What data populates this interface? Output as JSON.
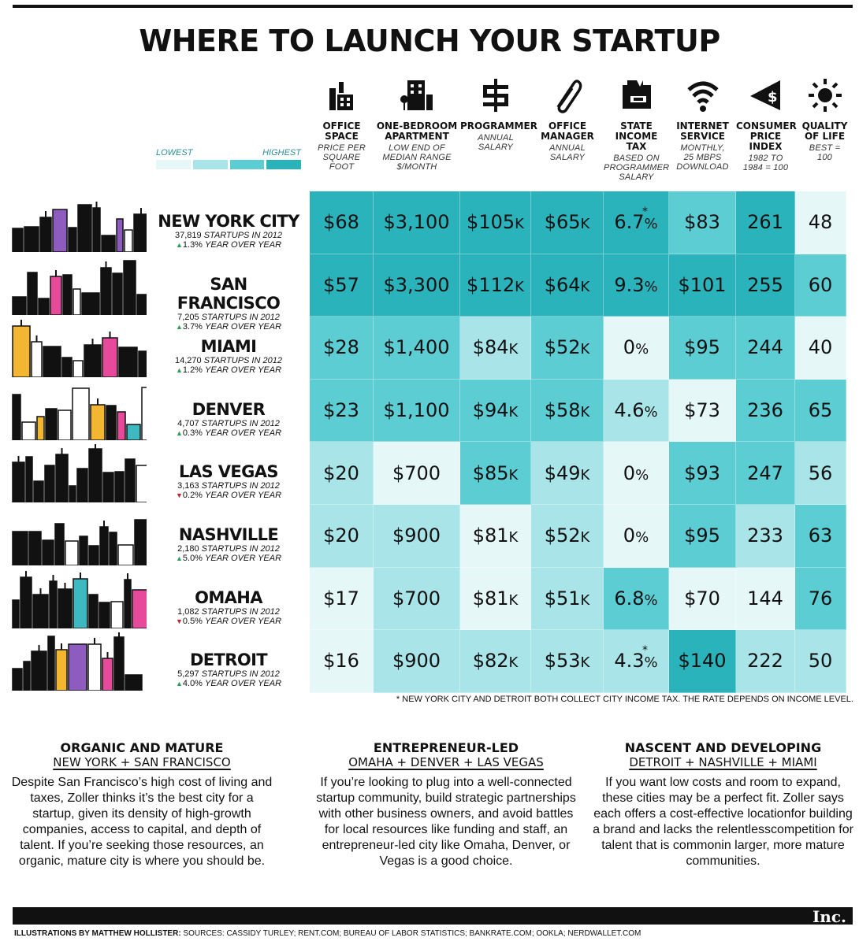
{
  "title": "WHERE TO LAUNCH YOUR STARTUP",
  "legend": {
    "low": "LOWEST",
    "high": "HIGHEST",
    "colors": [
      "#e6f7f8",
      "#a8e4e8",
      "#5ccdd3",
      "#2ab3bb"
    ]
  },
  "columns": [
    {
      "icon": "office-building-icon",
      "title1": "OFFICE",
      "title2": "SPACE",
      "sub": [
        "PRICE PER",
        "SQUARE",
        "FOOT"
      ]
    },
    {
      "icon": "apartment-icon",
      "title1": "ONE-BEDROOM",
      "title2": "APARTMENT",
      "sub": [
        "LOW END OF",
        "MEDIAN RANGE",
        "$/MONTH"
      ]
    },
    {
      "icon": "dollar-code-icon",
      "title1": "PROGRAMMER",
      "title2": "",
      "sub": [
        "ANNUAL",
        "SALARY",
        ""
      ]
    },
    {
      "icon": "paperclip-icon",
      "title1": "OFFICE",
      "title2": "MANAGER",
      "sub": [
        "ANNUAL",
        "SALARY",
        ""
      ]
    },
    {
      "icon": "tax-register-icon",
      "title1": "STATE",
      "title2": "INCOME TAX",
      "sub": [
        "BASED ON",
        "PROGRAMMER",
        "SALARY"
      ]
    },
    {
      "icon": "wifi-icon",
      "title1": "INTERNET",
      "title2": "SERVICE",
      "sub": [
        "MONTHLY,",
        "25 MBPS",
        "DOWNLOAD"
      ]
    },
    {
      "icon": "price-tag-icon",
      "title1": "CONSUMER",
      "title2": "PRICE",
      "title3": "INDEX",
      "sub": [
        "1982 TO",
        "1984 = 100",
        ""
      ]
    },
    {
      "icon": "sun-icon",
      "title1": "QUALITY",
      "title2": "OF LIFE",
      "sub": [
        "BEST =",
        "100",
        ""
      ]
    }
  ],
  "cities": [
    {
      "name": "NEW YORK CITY",
      "startups": "37,819",
      "startups_label": "STARTUPS IN 2012",
      "trend": "up",
      "change": "1.3%",
      "change_label": "YEAR OVER YEAR",
      "cells": [
        [
          "$68",
          4
        ],
        [
          "$3,100",
          4
        ],
        [
          "$105K",
          4
        ],
        [
          "$65K",
          4
        ],
        [
          "6.7%",
          4,
          true
        ],
        [
          "$83",
          3
        ],
        [
          "261",
          4
        ],
        [
          "48",
          1
        ]
      ]
    },
    {
      "name": "SAN FRANCISCO",
      "startups": "7,205",
      "startups_label": "STARTUPS IN 2012",
      "trend": "up",
      "change": "3.7%",
      "change_label": "YEAR OVER YEAR",
      "cells": [
        [
          "$57",
          4
        ],
        [
          "$3,300",
          4
        ],
        [
          "$112K",
          4
        ],
        [
          "$64K",
          4
        ],
        [
          "9.3%",
          4
        ],
        [
          "$101",
          4
        ],
        [
          "255",
          4
        ],
        [
          "60",
          3
        ]
      ]
    },
    {
      "name": "MIAMI",
      "startups": "14,270",
      "startups_label": "STARTUPS IN 2012",
      "trend": "up",
      "change": "1.2%",
      "change_label": "YEAR OVER YEAR",
      "cells": [
        [
          "$28",
          3
        ],
        [
          "$1,400",
          3
        ],
        [
          "$84K",
          2
        ],
        [
          "$52K",
          3
        ],
        [
          "0%",
          1
        ],
        [
          "$95",
          3
        ],
        [
          "244",
          3
        ],
        [
          "40",
          1
        ]
      ]
    },
    {
      "name": "DENVER",
      "startups": "4,707",
      "startups_label": "STARTUPS IN 2012",
      "trend": "up",
      "change": "0.3%",
      "change_label": "YEAR OVER YEAR",
      "cells": [
        [
          "$23",
          3
        ],
        [
          "$1,100",
          3
        ],
        [
          "$94K",
          3
        ],
        [
          "$58K",
          3
        ],
        [
          "4.6%",
          2
        ],
        [
          "$73",
          1
        ],
        [
          "236",
          3
        ],
        [
          "65",
          3
        ]
      ]
    },
    {
      "name": "LAS VEGAS",
      "startups": "3,163",
      "startups_label": "STARTUPS IN 2012",
      "trend": "down",
      "change": "0.2%",
      "change_label": "YEAR OVER YEAR",
      "cells": [
        [
          "$20",
          2
        ],
        [
          "$700",
          1
        ],
        [
          "$85K",
          3
        ],
        [
          "$49K",
          2
        ],
        [
          "0%",
          1
        ],
        [
          "$93",
          3
        ],
        [
          "247",
          3
        ],
        [
          "56",
          2
        ]
      ]
    },
    {
      "name": "NASHVILLE",
      "startups": "2,180",
      "startups_label": "STARTUPS IN 2012",
      "trend": "up",
      "change": "5.0%",
      "change_label": "YEAR OVER YEAR",
      "cells": [
        [
          "$20",
          2
        ],
        [
          "$900",
          2
        ],
        [
          "$81K",
          1
        ],
        [
          "$52K",
          2
        ],
        [
          "0%",
          1
        ],
        [
          "$95",
          3
        ],
        [
          "233",
          2
        ],
        [
          "63",
          3
        ]
      ]
    },
    {
      "name": "OMAHA",
      "startups": "1,082",
      "startups_label": "STARTUPS IN 2012",
      "trend": "down",
      "change": "0.5%",
      "change_label": "YEAR OVER YEAR",
      "cells": [
        [
          "$17",
          1
        ],
        [
          "$700",
          2
        ],
        [
          "$81K",
          1
        ],
        [
          "$51K",
          2
        ],
        [
          "6.8%",
          3
        ],
        [
          "$70",
          1
        ],
        [
          "144",
          1
        ],
        [
          "76",
          3
        ]
      ]
    },
    {
      "name": "DETROIT",
      "startups": "5,297",
      "startups_label": "STARTUPS IN 2012",
      "trend": "up",
      "change": "4.0%",
      "change_label": "YEAR OVER YEAR",
      "cells": [
        [
          "$16",
          1
        ],
        [
          "$900",
          2
        ],
        [
          "$82K",
          2
        ],
        [
          "$53K",
          2
        ],
        [
          "4.3%",
          2,
          true
        ],
        [
          "$140",
          4
        ],
        [
          "222",
          2
        ],
        [
          "50",
          2
        ]
      ]
    }
  ],
  "footnote": "NEW YORK CITY AND DETROIT BOTH COLLECT CITY INCOME TAX. THE RATE DEPENDS ON INCOME LEVEL.",
  "footnote_mark": "*",
  "sections": [
    {
      "heading": "ORGANIC AND MATURE",
      "subheading": "NEW YORK + SAN FRANCISCO",
      "body": "Despite San Francisco’s high cost of living and taxes, Zoller thinks it’s the best city for a startup, given its density of high-growth companies, access to capital, and depth of talent. If you’re seeking those resources, an organic, mature city is where you should be."
    },
    {
      "heading": "ENTREPRENEUR-LED",
      "subheading": "OMAHA + DENVER + LAS VEGAS",
      "body": "If you’re looking to plug into a well-connected startup community, build strategic partnerships with other business owners, and avoid battles for local resources like funding and staff, an entrepreneur-led city like Omaha, Denver, or Vegas is a good choice."
    },
    {
      "heading": "NASCENT AND DEVELOPING",
      "subheading": "DETROIT + NASHVILLE + MIAMI",
      "body": "If you want low costs and room to expand, these cities may be a perfect fit. Zoller says each offers a cost-effective locationfor building a brand and lacks the relentlesscompetition for talent that is commonin larger, more mature communities."
    }
  ],
  "brand": "Inc.",
  "credits_bold": "ILLUSTRATIONS BY MATTHEW HOLLISTER:",
  "credits_rest": " SOURCES: CASSIDY TURLEY; RENT.COM; BUREAU OF LABOR STATISTICS; BANKRATE.COM; OOKLA; NERDWALLET.COM"
}
